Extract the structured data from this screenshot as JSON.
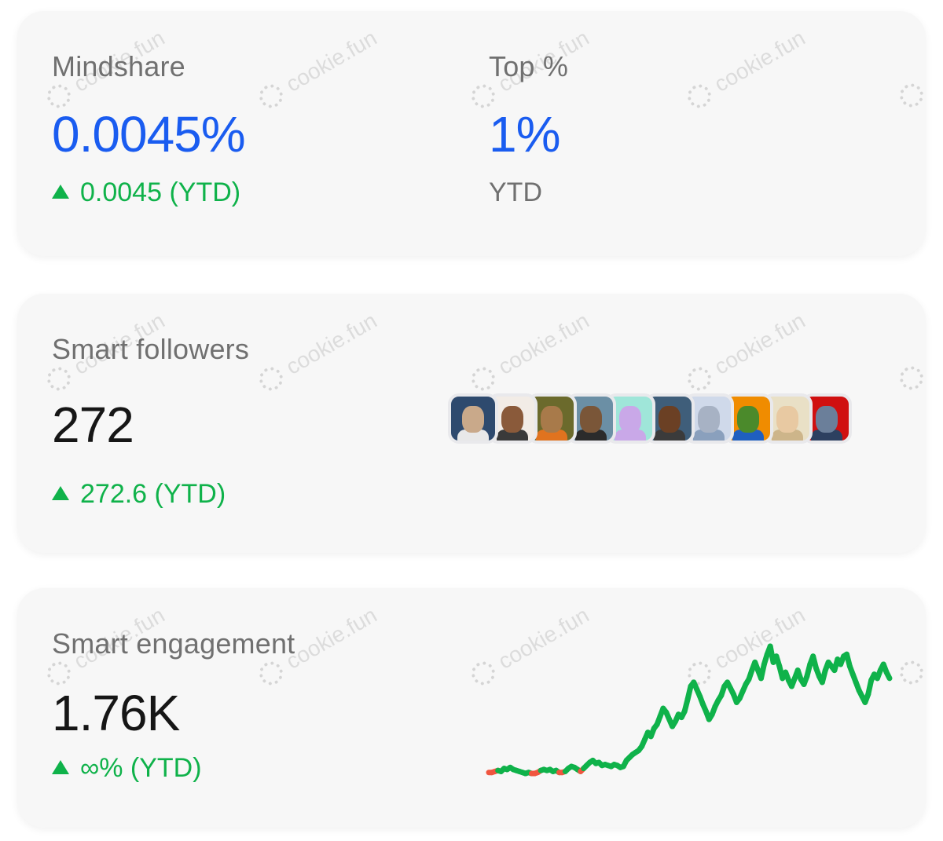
{
  "mindshare": {
    "label": "Mindshare",
    "value": "0.0045%",
    "delta": "0.0045 (YTD)"
  },
  "top_percent": {
    "label": "Top %",
    "value": "1%",
    "sub": "YTD"
  },
  "smart_followers": {
    "label": "Smart followers",
    "value": "272",
    "delta": "272.6 (YTD)",
    "avatars": [
      {
        "name": "follower-avatar-1",
        "bg": "#2e4a6e",
        "face": "#c9a98a",
        "body": "#e8e8e8"
      },
      {
        "name": "follower-avatar-2",
        "bg": "#f2ece6",
        "face": "#8a5a3a",
        "body": "#3a3a3a"
      },
      {
        "name": "follower-avatar-3",
        "bg": "#6b6a2c",
        "face": "#a87a4a",
        "body": "#e0731f"
      },
      {
        "name": "follower-avatar-4",
        "bg": "#6b8fa5",
        "face": "#7a5638",
        "body": "#2b2b2b"
      },
      {
        "name": "follower-avatar-5",
        "bg": "#9fe6d9",
        "face": "#c9a8e8",
        "body": "#c9a8e8"
      },
      {
        "name": "follower-avatar-6",
        "bg": "#3f5e7a",
        "face": "#6b4024",
        "body": "#3b3b3b"
      },
      {
        "name": "follower-avatar-7",
        "bg": "#cfd9ea",
        "face": "#a7b2c4",
        "body": "#8aa0bd"
      },
      {
        "name": "follower-avatar-8",
        "bg": "#f08c00",
        "face": "#4b8a2b",
        "body": "#1f5fbf"
      },
      {
        "name": "follower-avatar-9",
        "bg": "#e9e0c6",
        "face": "#e8c9a2",
        "body": "#cdb58a"
      },
      {
        "name": "follower-avatar-10",
        "bg": "#d01010",
        "face": "#6b7f9a",
        "body": "#2d4060"
      }
    ]
  },
  "smart_engagement": {
    "label": "Smart engagement",
    "value": "1.76K",
    "delta": "∞% (YTD)"
  },
  "watermark_text": "cookie.fun",
  "colors": {
    "accent_blue": "#1a5cf0",
    "positive_green": "#0fb24a",
    "negative_red": "#f0553f"
  },
  "chart_data": {
    "type": "line",
    "title": "",
    "xlabel": "",
    "ylabel": "",
    "grid": false,
    "series": [
      {
        "values": [
          2,
          2,
          3,
          4,
          3,
          6,
          5,
          7,
          5,
          4,
          3,
          2,
          1,
          2,
          1,
          1,
          2,
          4,
          5,
          4,
          5,
          3,
          4,
          2,
          2,
          3,
          6,
          8,
          7,
          5,
          3,
          6,
          9,
          12,
          14,
          11,
          12,
          9,
          10,
          9,
          8,
          10,
          9,
          7,
          8,
          14,
          17,
          20,
          22,
          24,
          28,
          35,
          42,
          38,
          46,
          50,
          58,
          66,
          62,
          55,
          48,
          53,
          60,
          57,
          63,
          75,
          88,
          92,
          85,
          78,
          70,
          63,
          55,
          60,
          68,
          74,
          79,
          88,
          92,
          86,
          80,
          72,
          76,
          83,
          90,
          95,
          104,
          112,
          104,
          96,
          110,
          120,
          128,
          112,
          118,
          108,
          96,
          102,
          94,
          88,
          96,
          104,
          95,
          90,
          98,
          110,
          118,
          106,
          98,
          92,
          104,
          112,
          108,
          104,
          115,
          110,
          118,
          120,
          108,
          100,
          92,
          84,
          78,
          72,
          80,
          94,
          100,
          96,
          104,
          110,
          102,
          96
        ]
      }
    ],
    "segment_colors": {
      "negative_indices": [
        [
          0,
          3
        ],
        [
          14,
          17
        ],
        [
          23,
          25
        ],
        [
          30,
          31
        ]
      ]
    }
  }
}
